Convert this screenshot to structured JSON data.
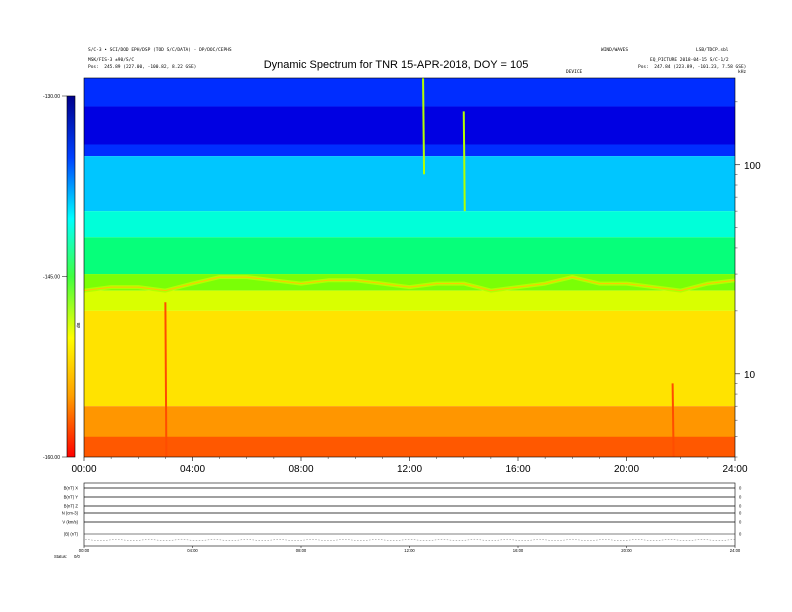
{
  "header": {
    "left_line1": "S/C-3 • SCI/DOD EPH/DSP (TOD S/C/DATA) - DP/DOC/CEPHS",
    "left_line2": "MSK/FIS-3 ±90/S/C",
    "left_pos_label": "Pos:",
    "left_pos_value": "245.89 (227.00, -100.82, 8.22 GSE)",
    "right_top": "WIND/WAVES",
    "right_top2": "LSB/TDCP.sbl",
    "right_line2": "EQ_PICTURE 2018-04-15 S/C-1/2",
    "right_pos_label": "Pos:",
    "right_pos_value": "247.84 (223.89, -101.23, 7.58 GSE)",
    "center_small": "DEVICE",
    "top_right_unit": "kHz"
  },
  "chart_data": {
    "type": "heatmap",
    "title": "Dynamic Spectrum for TNR 15-APR-2018, DOY = 105",
    "colorbar": {
      "ticks": [
        "-130.00",
        "-145.00",
        "-160.00"
      ],
      "ticklabel_values": [
        -130,
        -145,
        -160
      ],
      "label": "dB",
      "range": [
        -160,
        -130
      ],
      "colors": [
        "#00008b",
        "#0000ff",
        "#0080ff",
        "#00ffff",
        "#00ff80",
        "#80ff00",
        "#ffff00",
        "#ffc000",
        "#ff8000",
        "#ff0000"
      ]
    },
    "x_axis": {
      "ticks": [
        "00:00",
        "04:00",
        "08:00",
        "12:00",
        "16:00",
        "20:00",
        "24:00"
      ],
      "tick_hours": [
        0,
        4,
        8,
        12,
        16,
        20,
        24
      ],
      "range_hours": [
        0,
        24
      ]
    },
    "y_axis": {
      "scale": "log",
      "ticks": [
        "100",
        "10"
      ],
      "tick_values": [
        100,
        10
      ],
      "range_khz": [
        4,
        260
      ]
    },
    "bands": [
      {
        "from_khz": 190,
        "to_khz": 260,
        "level_db": -134.5
      },
      {
        "from_khz": 125,
        "to_khz": 190,
        "level_db": -132.5
      },
      {
        "from_khz": 110,
        "to_khz": 125,
        "level_db": -134.5
      },
      {
        "from_khz": 60,
        "to_khz": 110,
        "level_db": -138.5
      },
      {
        "from_khz": 45,
        "to_khz": 60,
        "level_db": -141.0
      },
      {
        "from_khz": 30,
        "to_khz": 45,
        "level_db": -143.5
      },
      {
        "from_khz": 25,
        "to_khz": 30,
        "level_db": -146.5
      },
      {
        "from_khz": 20,
        "to_khz": 25,
        "level_db": -149.0
      },
      {
        "from_khz": 7,
        "to_khz": 20,
        "level_db": -151.5
      },
      {
        "from_khz": 4,
        "to_khz": 7,
        "level_db": -155.5
      }
    ],
    "orange_line": {
      "hours": [
        0,
        1,
        2,
        3,
        4,
        5,
        6,
        7,
        8,
        9,
        10,
        11,
        12,
        13,
        14,
        15,
        16,
        17,
        18,
        19,
        20,
        21,
        22,
        23,
        24
      ],
      "freq_khz": [
        25,
        26,
        26,
        25,
        27,
        29,
        29,
        28,
        27,
        28,
        28,
        27,
        26,
        27,
        27,
        25,
        26,
        27,
        29,
        27,
        27,
        26,
        25,
        27,
        28
      ]
    },
    "bursts": [
      {
        "hour": 3.0,
        "from_khz": 22,
        "to_khz": 4
      },
      {
        "hour": 12.5,
        "from_khz": 260,
        "to_khz": 90
      },
      {
        "hour": 14.0,
        "from_khz": 180,
        "to_khz": 60
      },
      {
        "hour": 21.7,
        "from_khz": 9,
        "to_khz": 4
      }
    ]
  },
  "bottom_panel": {
    "row_labels": [
      "B(nT) X",
      "B(nT) Y",
      "B(nT) Z",
      "N (cm-3)",
      "V (km/s)",
      "|B| (nT)"
    ],
    "right_labels": [
      "0",
      "0",
      "0",
      "0",
      "0",
      "0"
    ],
    "x_ticks": [
      "00:00",
      "04:00",
      "08:00",
      "12:00",
      "16:00",
      "20:00",
      "24:00"
    ],
    "status_label": "Status:",
    "status_value": "0/0"
  }
}
